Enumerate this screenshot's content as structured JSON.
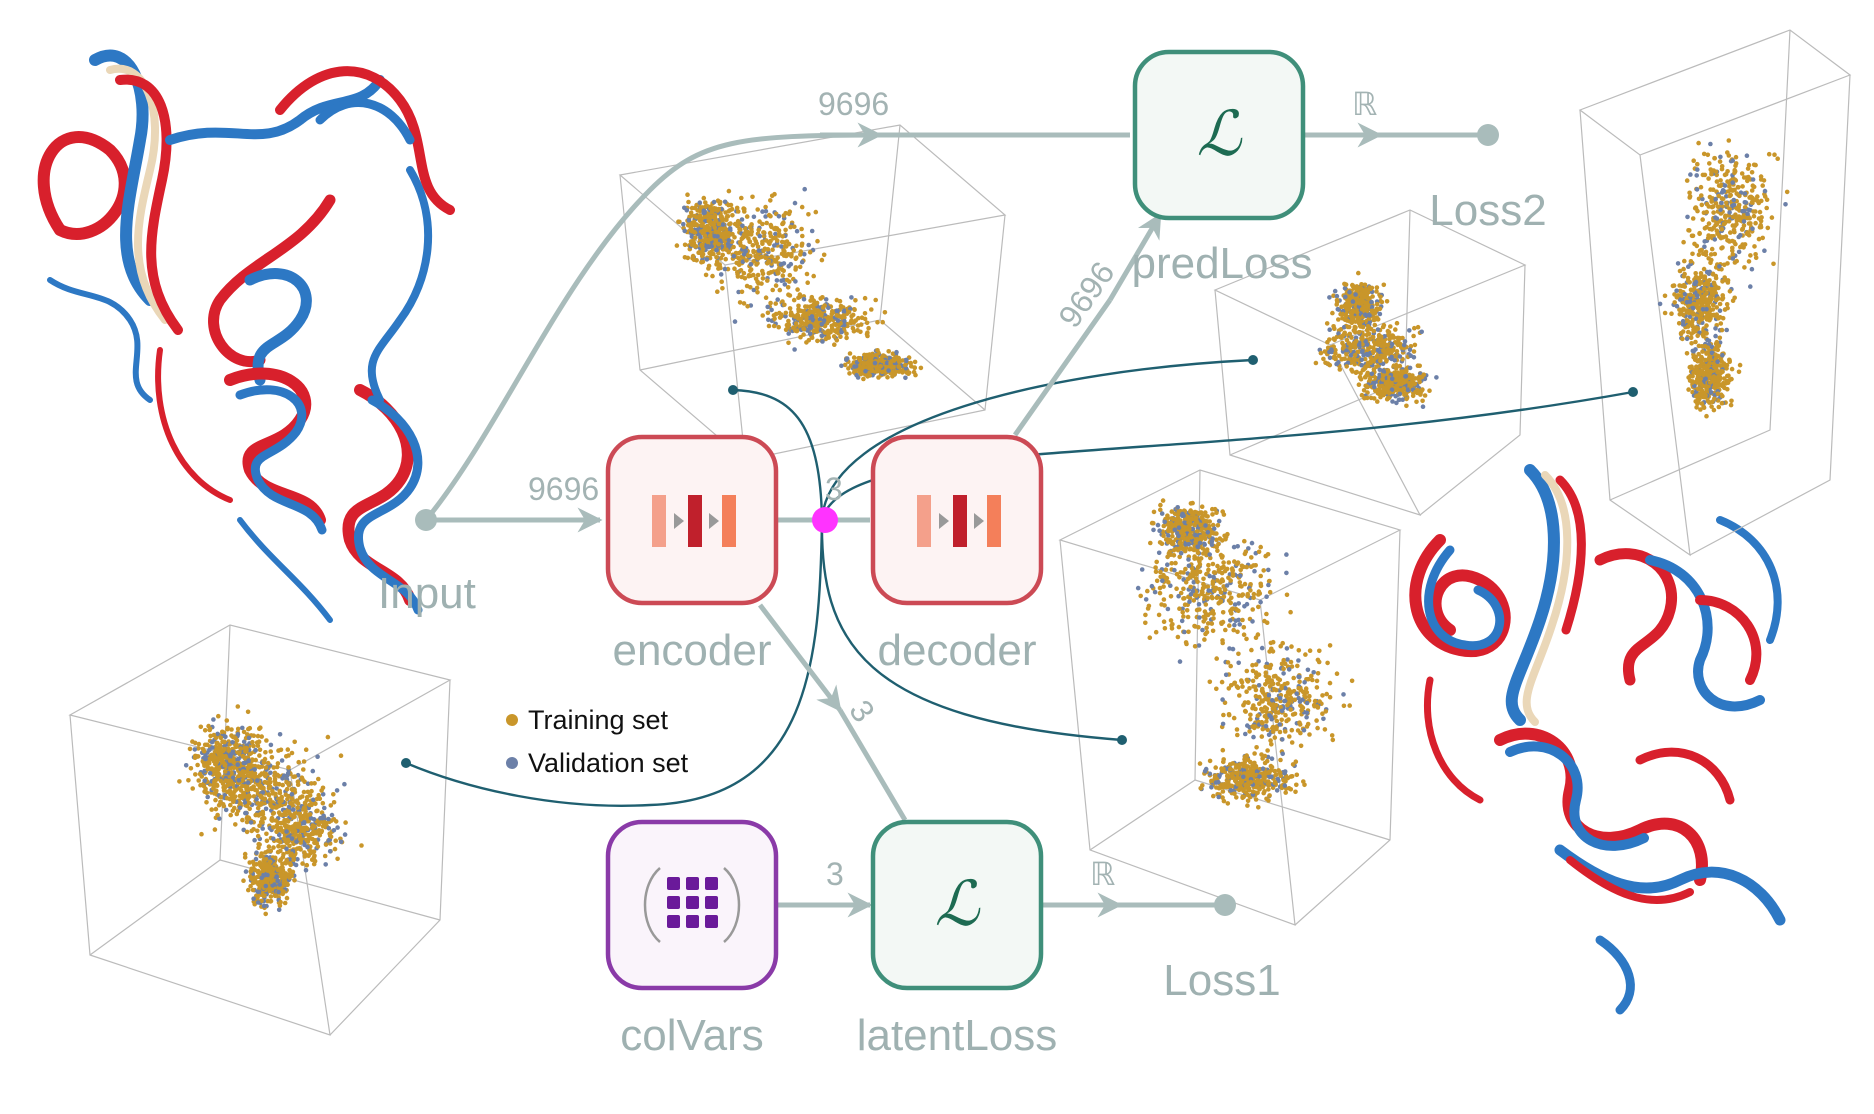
{
  "nodes": {
    "input": "Input",
    "encoder": "encoder",
    "decoder": "decoder",
    "predLoss": "predLoss",
    "loss2": "Loss2",
    "colVars": "colVars",
    "latentLoss": "latentLoss",
    "loss1": "Loss1"
  },
  "edges": {
    "input_to_encoder": "9696",
    "input_to_predloss": "9696",
    "decoder_to_predloss": "9696",
    "encoder_to_decoder": "3",
    "encoder_to_latentloss": "3",
    "colvars_to_latentloss": "3",
    "predloss_to_loss2": "ℝ",
    "latentloss_to_loss1": "ℝ"
  },
  "loss_symbol": "ℒ",
  "legend": [
    {
      "label": "Training set",
      "color": "#c9962a"
    },
    {
      "label": "Validation set",
      "color": "#6c80a8"
    }
  ],
  "colors": {
    "edge": "#a9bcbb",
    "loss_box": "#3f8f7a",
    "network_box": "#cc4a55",
    "colvars_box": "#8a3aa8",
    "junction": "#ff33ff",
    "pointer_line": "#1f5f70",
    "protein_red": "#d8202c",
    "protein_blue": "#2d78c4",
    "protein_tan": "#ead7b8"
  }
}
